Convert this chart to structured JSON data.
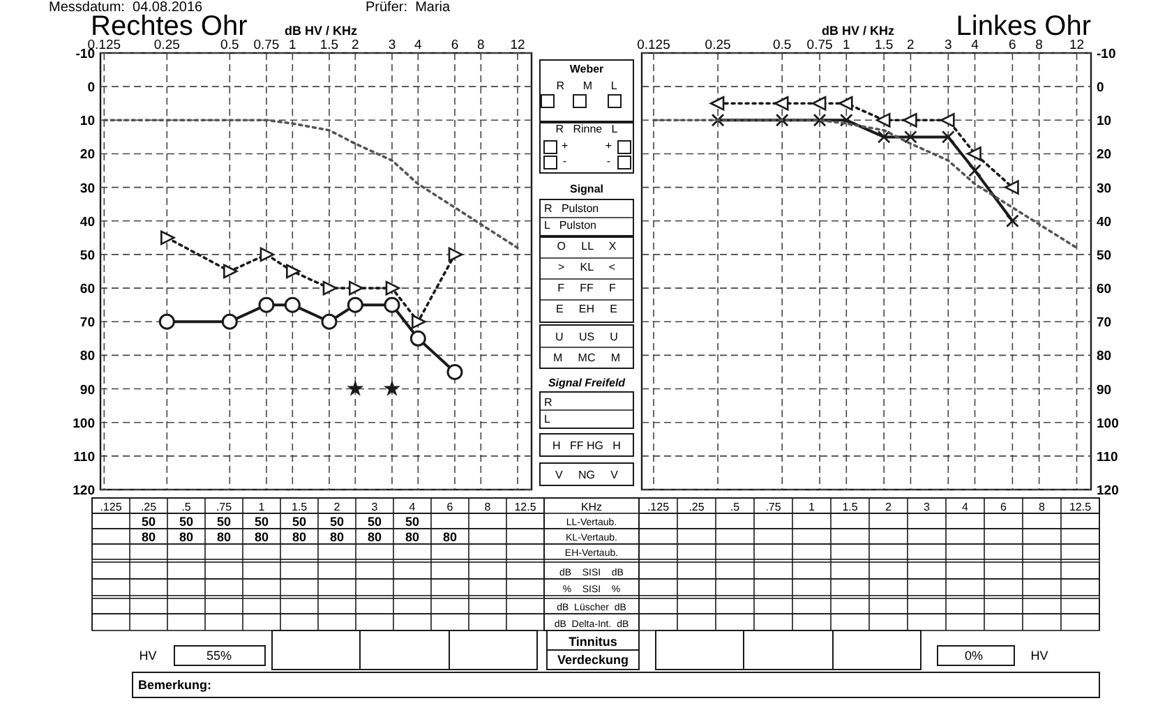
{
  "chart_data": [
    {
      "type": "line",
      "title": "Rechtes Ohr",
      "xlabel": "dB HV / KHz",
      "log": "x",
      "grid": true,
      "xlim": [
        0.12,
        14
      ],
      "xticks": [
        0.125,
        0.25,
        0.5,
        0.75,
        1,
        1.5,
        2,
        3,
        4,
        6,
        8,
        12
      ],
      "ylim": [
        120,
        -10
      ],
      "yticks": [
        -10,
        0,
        10,
        20,
        30,
        40,
        50,
        60,
        70,
        80,
        90,
        100,
        110,
        120
      ],
      "annotations": [
        "Messdatum:  04.08.2016",
        "Prüfer:  Maria"
      ],
      "series": [
        {
          "color": "#1a1a1a",
          "marker": "circle",
          "line_style": "solid",
          "x": [
            0.25,
            0.5,
            0.75,
            1,
            1.5,
            2,
            3,
            4,
            6
          ],
          "values": [
            70,
            70,
            65,
            65,
            70,
            65,
            65,
            75,
            85
          ]
        },
        {
          "color": "#1a1a1a",
          "marker": "triangle",
          "line_style": "dotted",
          "x": [
            0.25,
            0.5,
            0.75,
            1,
            1.5,
            2,
            3,
            4,
            6
          ],
          "values": [
            45,
            55,
            50,
            55,
            60,
            60,
            60,
            70,
            50
          ]
        },
        {
          "color": "#555555",
          "marker": "none",
          "line_style": "dotted",
          "x": [
            0.125,
            0.25,
            0.5,
            0.75,
            1,
            1.5,
            2,
            3,
            4,
            6,
            8,
            12
          ],
          "values": [
            10,
            10,
            10,
            10,
            11,
            13,
            17,
            22,
            29,
            36,
            41,
            48
          ]
        },
        {
          "type": "scatter",
          "color": "#1a1a1a",
          "marker": "star",
          "x": [
            2,
            3
          ],
          "values": [
            90,
            90
          ]
        }
      ]
    },
    {
      "type": "other",
      "annotations": [
        "Weber",
        "R      M      L",
        "R   Rinne   L",
        "+            +",
        "-             -",
        "Signal",
        "R   Pulston",
        "L   Pulston",
        "O     LL     X",
        ">     KL     <",
        "F     FF     F",
        "E     EH     E",
        "U     US     U",
        "M     MC     M",
        "Signal Freifeld",
        "R",
        "L",
        "H   FF HG   H",
        "V     NG     V"
      ]
    },
    {
      "type": "line",
      "title": "Linkes Ohr",
      "xlabel": "dB HV / KHz",
      "log": "x",
      "grid": true,
      "xlim": [
        0.11,
        14
      ],
      "xticks": [
        0.125,
        0.25,
        0.5,
        0.75,
        1,
        1.5,
        2,
        3,
        4,
        6,
        8,
        12
      ],
      "ylim": [
        120,
        -10
      ],
      "yticks": [
        -10,
        0,
        10,
        20,
        30,
        40,
        50,
        60,
        70,
        80,
        90,
        100,
        110,
        120
      ],
      "series": [
        {
          "color": "#1a1a1a",
          "marker": "cross",
          "line_style": "solid",
          "x": [
            0.25,
            0.5,
            0.75,
            1,
            1.5,
            2,
            3,
            4,
            6
          ],
          "values": [
            10,
            10,
            10,
            10,
            15,
            15,
            15,
            25,
            40
          ]
        },
        {
          "color": "#1a1a1a",
          "marker": "triangle",
          "line_style": "dotted",
          "x": [
            0.25,
            0.5,
            0.75,
            1,
            1.5,
            2,
            3,
            4,
            6
          ],
          "values": [
            5,
            5,
            5,
            5,
            10,
            10,
            10,
            20,
            30
          ]
        },
        {
          "color": "#555555",
          "marker": "none",
          "line_style": "dotted",
          "x": [
            0.125,
            0.25,
            0.5,
            0.75,
            1,
            1.5,
            2,
            3,
            4,
            6,
            8,
            12
          ],
          "values": [
            10,
            10,
            10,
            10,
            11,
            13,
            17,
            22,
            29,
            36,
            41,
            48
          ]
        }
      ]
    },
    {
      "type": "other",
      "xlabel": "KHz",
      "categories": [
        ".125",
        ".25",
        ".5",
        ".75",
        "1",
        "1.5",
        "2",
        "3",
        "4",
        "6",
        "8",
        "12.5"
      ],
      "y_categories": [
        "LL-Vertaub.",
        "KL-Vertaub.",
        "EH-Vertaub.",
        "dB    SISI    dB",
        "%    SISI    %",
        "dB  Lüscher  dB",
        "dB  Delta-Int.  dB"
      ],
      "cell_labels": [
        [
          null,
          "50",
          "50",
          "50",
          "50",
          "50",
          "50",
          "50",
          "50",
          null,
          null,
          null
        ],
        [
          null,
          "80",
          "80",
          "80",
          "80",
          "80",
          "80",
          "80",
          "80",
          "80",
          null,
          null
        ],
        [
          null,
          null,
          null,
          null,
          null,
          null,
          null,
          null,
          null,
          null,
          null,
          null
        ],
        [
          null,
          null,
          null,
          null,
          null,
          null,
          null,
          null,
          null,
          null,
          null,
          null
        ],
        [
          null,
          null,
          null,
          null,
          null,
          null,
          null,
          null,
          null,
          null,
          null,
          null
        ],
        [
          null,
          null,
          null,
          null,
          null,
          null,
          null,
          null,
          null,
          null,
          null,
          null
        ],
        [
          null,
          null,
          null,
          null,
          null,
          null,
          null,
          null,
          null,
          null,
          null,
          null
        ]
      ],
      "annotations": [
        "HV",
        "55%",
        "Tinnitus",
        "Verdeckung",
        "Bemerkung:"
      ]
    },
    {
      "type": "other",
      "categories": [
        ".125",
        ".25",
        ".5",
        ".75",
        "1",
        "1.5",
        "2",
        "3",
        "4",
        "6",
        "8",
        "12.5"
      ],
      "annotations": [
        "0%",
        "HV"
      ]
    }
  ]
}
